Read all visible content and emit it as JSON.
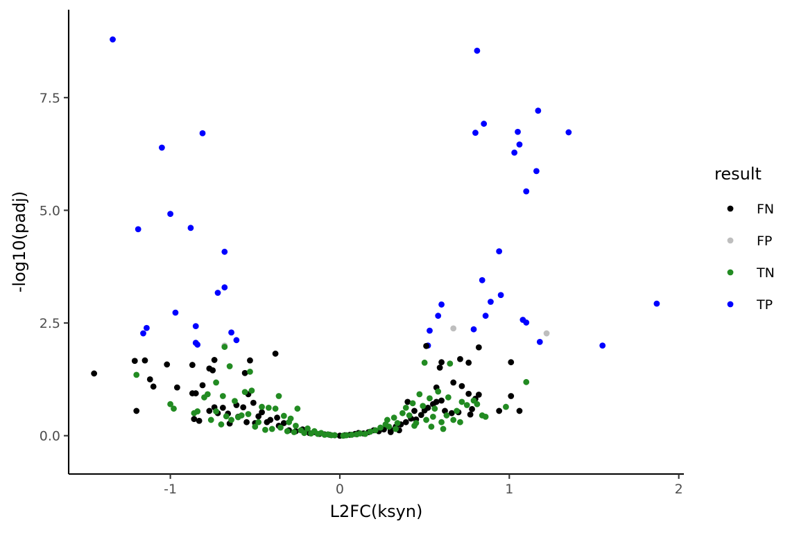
{
  "chart_data": {
    "type": "scatter",
    "xlabel": "L2FC(ksyn)",
    "ylabel": "-log10(padj)",
    "xlim": [
      -1.6,
      2.03
    ],
    "ylim": [
      -0.85,
      9.45
    ],
    "x_ticks": [
      -1,
      0,
      1,
      2
    ],
    "x_tick_labels": [
      "-1",
      "0",
      "1",
      "2"
    ],
    "y_ticks": [
      0,
      2.5,
      5,
      7.5
    ],
    "y_tick_labels": [
      "0.0",
      "2.5",
      "5.0",
      "7.5"
    ],
    "grid": false,
    "legend": {
      "title": "result",
      "placement": "right",
      "entries": [
        {
          "label": "FN",
          "color": "#000000"
        },
        {
          "label": "FP",
          "color": "#bebebe"
        },
        {
          "label": "TN",
          "color": "#228b22"
        },
        {
          "label": "TP",
          "color": "#0000ff"
        }
      ]
    },
    "series": [
      {
        "name": "TP",
        "color": "#0000ff",
        "points": [
          [
            -1.34,
            8.79
          ],
          [
            -1.05,
            6.39
          ],
          [
            -0.81,
            6.71
          ],
          [
            -1.0,
            4.92
          ],
          [
            -1.19,
            4.58
          ],
          [
            -0.88,
            4.61
          ],
          [
            -0.68,
            4.08
          ],
          [
            -0.68,
            3.29
          ],
          [
            -0.72,
            3.17
          ],
          [
            -0.97,
            2.73
          ],
          [
            -1.14,
            2.39
          ],
          [
            -1.16,
            2.27
          ],
          [
            -0.85,
            2.43
          ],
          [
            -0.64,
            2.29
          ],
          [
            -0.85,
            2.06
          ],
          [
            -0.84,
            2.02
          ],
          [
            -0.61,
            2.12
          ],
          [
            0.81,
            8.54
          ],
          [
            1.17,
            7.21
          ],
          [
            0.85,
            6.92
          ],
          [
            0.8,
            6.72
          ],
          [
            1.05,
            6.74
          ],
          [
            1.35,
            6.73
          ],
          [
            1.06,
            6.46
          ],
          [
            1.03,
            6.28
          ],
          [
            1.16,
            5.87
          ],
          [
            1.1,
            5.42
          ],
          [
            0.94,
            4.09
          ],
          [
            0.84,
            3.45
          ],
          [
            0.95,
            3.12
          ],
          [
            0.89,
            2.97
          ],
          [
            0.6,
            2.91
          ],
          [
            0.58,
            2.66
          ],
          [
            0.86,
            2.66
          ],
          [
            1.08,
            2.57
          ],
          [
            1.1,
            2.51
          ],
          [
            0.79,
            2.36
          ],
          [
            0.53,
            2.33
          ],
          [
            1.87,
            2.93
          ],
          [
            1.18,
            2.08
          ],
          [
            1.55,
            2.0
          ],
          [
            0.52,
            2.0
          ]
        ]
      },
      {
        "name": "FP",
        "color": "#bebebe",
        "points": [
          [
            -0.68,
            2.0
          ],
          [
            0.67,
            2.38
          ],
          [
            1.22,
            2.27
          ]
        ]
      },
      {
        "name": "FN",
        "color": "#000000",
        "points": [
          [
            -1.45,
            1.38
          ],
          [
            -1.21,
            1.66
          ],
          [
            -1.15,
            1.67
          ],
          [
            -1.02,
            1.58
          ],
          [
            -0.87,
            1.57
          ],
          [
            -0.74,
            1.68
          ],
          [
            -0.77,
            1.49
          ],
          [
            -0.75,
            1.45
          ],
          [
            -0.53,
            1.67
          ],
          [
            -0.56,
            1.39
          ],
          [
            -0.38,
            1.82
          ],
          [
            -1.12,
            1.25
          ],
          [
            -1.1,
            1.09
          ],
          [
            -0.96,
            1.07
          ],
          [
            -0.81,
            1.12
          ],
          [
            -0.87,
            0.94
          ],
          [
            -0.85,
            0.94
          ],
          [
            -1.2,
            0.55
          ],
          [
            -0.74,
            0.63
          ],
          [
            -0.69,
            0.62
          ],
          [
            -0.77,
            0.55
          ],
          [
            -0.61,
            0.68
          ],
          [
            -0.57,
            0.63
          ],
          [
            -0.51,
            0.73
          ],
          [
            -0.54,
            0.92
          ],
          [
            -0.46,
            0.52
          ],
          [
            -0.41,
            0.35
          ],
          [
            -0.37,
            0.4
          ],
          [
            -0.33,
            0.28
          ],
          [
            -0.36,
            0.22
          ],
          [
            -0.43,
            0.3
          ],
          [
            -0.48,
            0.43
          ],
          [
            -0.5,
            0.28
          ],
          [
            -0.55,
            0.3
          ],
          [
            -0.6,
            0.42
          ],
          [
            -0.65,
            0.27
          ],
          [
            -0.72,
            0.5
          ],
          [
            -0.66,
            0.49
          ],
          [
            -0.83,
            0.33
          ],
          [
            -0.86,
            0.37
          ],
          [
            -0.3,
            0.12
          ],
          [
            -0.26,
            0.1
          ],
          [
            -0.22,
            0.14
          ],
          [
            -0.18,
            0.06
          ],
          [
            -0.15,
            0.08
          ],
          [
            -0.12,
            0.04
          ],
          [
            -0.09,
            0.03
          ],
          [
            -0.06,
            0.02
          ],
          [
            -0.03,
            0.01
          ],
          [
            0.0,
            0.0
          ],
          [
            0.03,
            0.01
          ],
          [
            0.06,
            0.02
          ],
          [
            0.09,
            0.04
          ],
          [
            0.11,
            0.06
          ],
          [
            0.14,
            0.05
          ],
          [
            0.17,
            0.08
          ],
          [
            0.2,
            0.12
          ],
          [
            0.23,
            0.1
          ],
          [
            0.26,
            0.14
          ],
          [
            0.3,
            0.13
          ],
          [
            0.33,
            0.2
          ],
          [
            0.36,
            0.25
          ],
          [
            0.39,
            0.3
          ],
          [
            0.42,
            0.38
          ],
          [
            0.45,
            0.36
          ],
          [
            0.48,
            0.46
          ],
          [
            0.5,
            0.56
          ],
          [
            0.52,
            0.62
          ],
          [
            0.55,
            0.7
          ],
          [
            0.57,
            0.75
          ],
          [
            0.6,
            0.78
          ],
          [
            0.62,
            0.55
          ],
          [
            0.66,
            0.5
          ],
          [
            0.7,
            0.52
          ],
          [
            0.77,
            0.47
          ],
          [
            0.78,
            0.59
          ],
          [
            0.8,
            0.82
          ],
          [
            0.82,
            0.91
          ],
          [
            0.94,
            0.55
          ],
          [
            1.01,
            0.88
          ],
          [
            1.06,
            0.55
          ],
          [
            0.51,
            1.99
          ],
          [
            0.71,
            1.7
          ],
          [
            0.76,
            1.62
          ],
          [
            0.6,
            1.63
          ],
          [
            0.59,
            1.51
          ],
          [
            0.82,
            1.96
          ],
          [
            0.67,
            1.18
          ],
          [
            0.72,
            1.1
          ],
          [
            0.57,
            1.07
          ],
          [
            0.76,
            0.93
          ],
          [
            1.01,
            1.63
          ],
          [
            0.4,
            0.75
          ],
          [
            0.44,
            0.55
          ],
          [
            0.35,
            0.12
          ],
          [
            0.3,
            0.08
          ]
        ]
      },
      {
        "name": "TN",
        "color": "#228b22",
        "points": [
          [
            -1.2,
            1.35
          ],
          [
            -0.53,
            1.42
          ],
          [
            -0.65,
            1.54
          ],
          [
            -0.68,
            1.97
          ],
          [
            -0.73,
            1.18
          ],
          [
            -1.0,
            0.7
          ],
          [
            -0.98,
            0.6
          ],
          [
            -0.86,
            0.5
          ],
          [
            -0.84,
            0.54
          ],
          [
            -0.8,
            0.85
          ],
          [
            -0.78,
            0.92
          ],
          [
            -0.76,
            0.35
          ],
          [
            -0.73,
            0.54
          ],
          [
            -0.7,
            0.25
          ],
          [
            -0.69,
            0.88
          ],
          [
            -0.67,
            0.43
          ],
          [
            -0.64,
            0.35
          ],
          [
            -0.62,
            0.77
          ],
          [
            -0.6,
            0.41
          ],
          [
            -0.58,
            0.45
          ],
          [
            -0.56,
            0.97
          ],
          [
            -0.54,
            0.48
          ],
          [
            -0.52,
            1.0
          ],
          [
            -0.5,
            0.2
          ],
          [
            -0.48,
            0.3
          ],
          [
            -0.46,
            0.64
          ],
          [
            -0.44,
            0.13
          ],
          [
            -0.42,
            0.62
          ],
          [
            -0.4,
            0.15
          ],
          [
            -0.38,
            0.6
          ],
          [
            -0.36,
            0.88
          ],
          [
            -0.35,
            0.18
          ],
          [
            -0.33,
            0.44
          ],
          [
            -0.31,
            0.1
          ],
          [
            -0.29,
            0.38
          ],
          [
            -0.27,
            0.08
          ],
          [
            -0.25,
            0.6
          ],
          [
            -0.23,
            0.12
          ],
          [
            -0.21,
            0.06
          ],
          [
            -0.19,
            0.16
          ],
          [
            -0.17,
            0.05
          ],
          [
            -0.15,
            0.1
          ],
          [
            -0.13,
            0.04
          ],
          [
            -0.11,
            0.06
          ],
          [
            -0.09,
            0.02
          ],
          [
            -0.07,
            0.03
          ],
          [
            -0.05,
            0.01
          ],
          [
            -0.03,
            0.01
          ],
          [
            0.02,
            0.0
          ],
          [
            0.04,
            0.01
          ],
          [
            0.07,
            0.02
          ],
          [
            0.1,
            0.03
          ],
          [
            0.12,
            0.05
          ],
          [
            0.15,
            0.04
          ],
          [
            0.18,
            0.09
          ],
          [
            0.21,
            0.12
          ],
          [
            0.24,
            0.18
          ],
          [
            0.27,
            0.25
          ],
          [
            0.29,
            0.2
          ],
          [
            0.32,
            0.4
          ],
          [
            0.34,
            0.28
          ],
          [
            0.37,
            0.5
          ],
          [
            0.39,
            0.62
          ],
          [
            0.41,
            0.45
          ],
          [
            0.43,
            0.72
          ],
          [
            0.45,
            0.28
          ],
          [
            0.47,
            0.92
          ],
          [
            0.49,
            0.66
          ],
          [
            0.5,
            1.62
          ],
          [
            0.51,
            0.35
          ],
          [
            0.53,
            0.83
          ],
          [
            0.55,
            0.42
          ],
          [
            0.56,
            0.6
          ],
          [
            0.58,
            0.98
          ],
          [
            0.6,
            0.3
          ],
          [
            0.61,
            0.15
          ],
          [
            0.63,
            0.45
          ],
          [
            0.64,
            0.85
          ],
          [
            0.65,
            1.6
          ],
          [
            0.67,
            0.35
          ],
          [
            0.69,
            0.55
          ],
          [
            0.71,
            0.3
          ],
          [
            0.72,
            0.75
          ],
          [
            0.75,
            0.68
          ],
          [
            0.79,
            0.78
          ],
          [
            0.81,
            0.7
          ],
          [
            0.84,
            0.45
          ],
          [
            0.86,
            0.42
          ],
          [
            0.98,
            0.64
          ],
          [
            1.1,
            1.19
          ],
          [
            -0.3,
            0.3
          ],
          [
            -0.26,
            0.22
          ],
          [
            0.28,
            0.35
          ],
          [
            0.33,
            0.15
          ],
          [
            0.44,
            0.22
          ],
          [
            0.54,
            0.2
          ]
        ]
      }
    ]
  }
}
